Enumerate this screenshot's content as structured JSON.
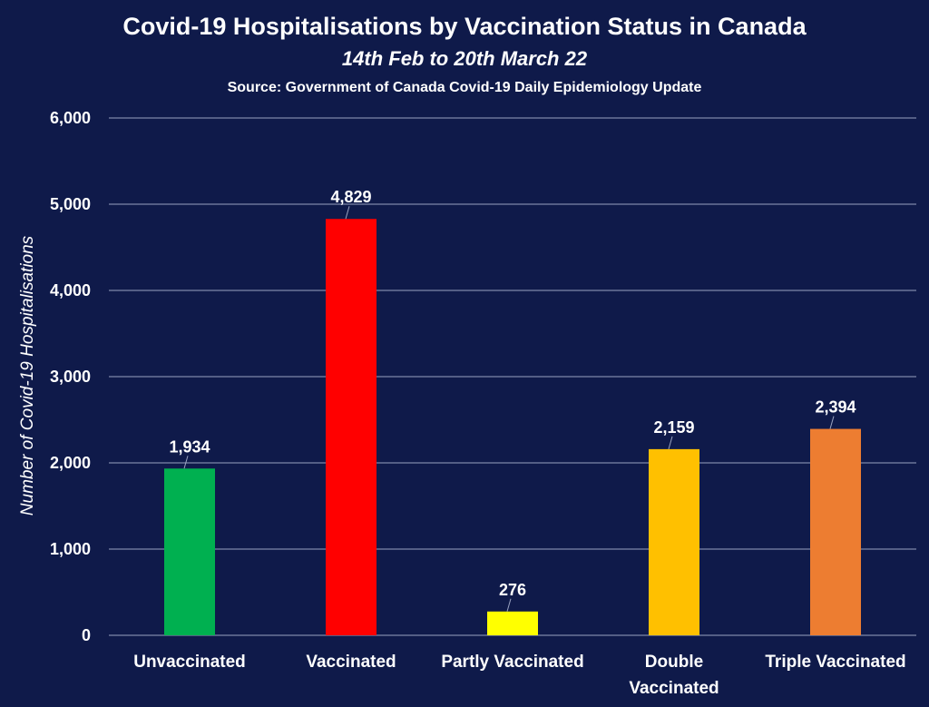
{
  "background": "#0f1a4a",
  "chart_data": {
    "type": "bar",
    "title": "Covid-19 Hospitalisations by Vaccination Status in Canada",
    "subtitle": "14th Feb to 20th March 22",
    "source": "Source: Government of Canada  Covid-19 Daily Epidemiology Update",
    "ylabel": "Number of Covid-19 Hospitalisations",
    "xlabel": "",
    "ylim": [
      0,
      6000
    ],
    "yticks": [
      0,
      1000,
      2000,
      3000,
      4000,
      5000,
      6000
    ],
    "ytick_labels": [
      "0",
      "1,000",
      "2,000",
      "3,000",
      "4,000",
      "5,000",
      "6,000"
    ],
    "grid": true,
    "legend": "none",
    "categories": [
      [
        "Unvaccinated"
      ],
      [
        "Vaccinated"
      ],
      [
        "Partly Vaccinated"
      ],
      [
        "Double",
        "Vaccinated"
      ],
      [
        "Triple Vaccinated"
      ]
    ],
    "values": [
      1934,
      4829,
      276,
      2159,
      2394
    ],
    "value_labels": [
      "1,934",
      "4,829",
      "276",
      "2,159",
      "2,394"
    ],
    "colors": [
      "#00b050",
      "#ff0000",
      "#ffff00",
      "#ffc000",
      "#ed7d31"
    ]
  }
}
